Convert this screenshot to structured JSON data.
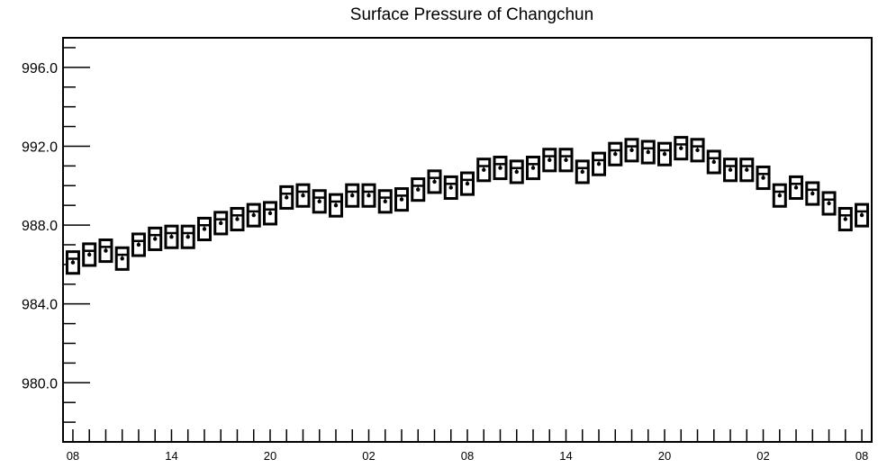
{
  "chart_data": {
    "type": "box",
    "title": "Surface Pressure of Changchun",
    "xlabel": "",
    "ylabel": "",
    "ylim": [
      977,
      997.5
    ],
    "y_ticks": [
      980.0,
      984.0,
      988.0,
      992.0,
      996.0
    ],
    "y_tick_labels": [
      "980.0",
      "984.0",
      "988.0",
      "992.0",
      "996.0"
    ],
    "x_tick_labels": [
      "08",
      "14",
      "20",
      "02",
      "08",
      "14",
      "20",
      "02",
      "08"
    ],
    "x_tick_label_positions": [
      0,
      6,
      12,
      18,
      24,
      30,
      36,
      42,
      48
    ],
    "x_range": [
      -0.6,
      48.6
    ],
    "series": [
      {
        "values": [
          986.1,
          986.5,
          986.7,
          986.3,
          987.0,
          987.3,
          987.4,
          987.4,
          987.8,
          988.1,
          988.3,
          988.5,
          988.6,
          989.4,
          989.5,
          989.2,
          989.0,
          989.5,
          989.5,
          989.2,
          989.3,
          989.8,
          990.2,
          989.9,
          990.1,
          990.8,
          990.9,
          990.7,
          990.9,
          991.3,
          991.3,
          990.7,
          991.1,
          991.6,
          991.8,
          991.7,
          991.6,
          991.9,
          991.8,
          991.2,
          990.8,
          990.8,
          990.4,
          989.5,
          989.9,
          989.6,
          989.1,
          988.3,
          988.5
        ],
        "spread": [
          0.55,
          0.55,
          0.55,
          0.55,
          0.55,
          0.55,
          0.55,
          0.55,
          0.55,
          0.55,
          0.55,
          0.55,
          0.55,
          0.55,
          0.55,
          0.55,
          0.55,
          0.55,
          0.55,
          0.55,
          0.55,
          0.55,
          0.55,
          0.55,
          0.55,
          0.55,
          0.55,
          0.55,
          0.55,
          0.55,
          0.55,
          0.55,
          0.55,
          0.55,
          0.55,
          0.55,
          0.55,
          0.55,
          0.55,
          0.55,
          0.55,
          0.55,
          0.55,
          0.55,
          0.55,
          0.55,
          0.55,
          0.55,
          0.55
        ]
      }
    ],
    "grid": false,
    "legend": "none"
  }
}
